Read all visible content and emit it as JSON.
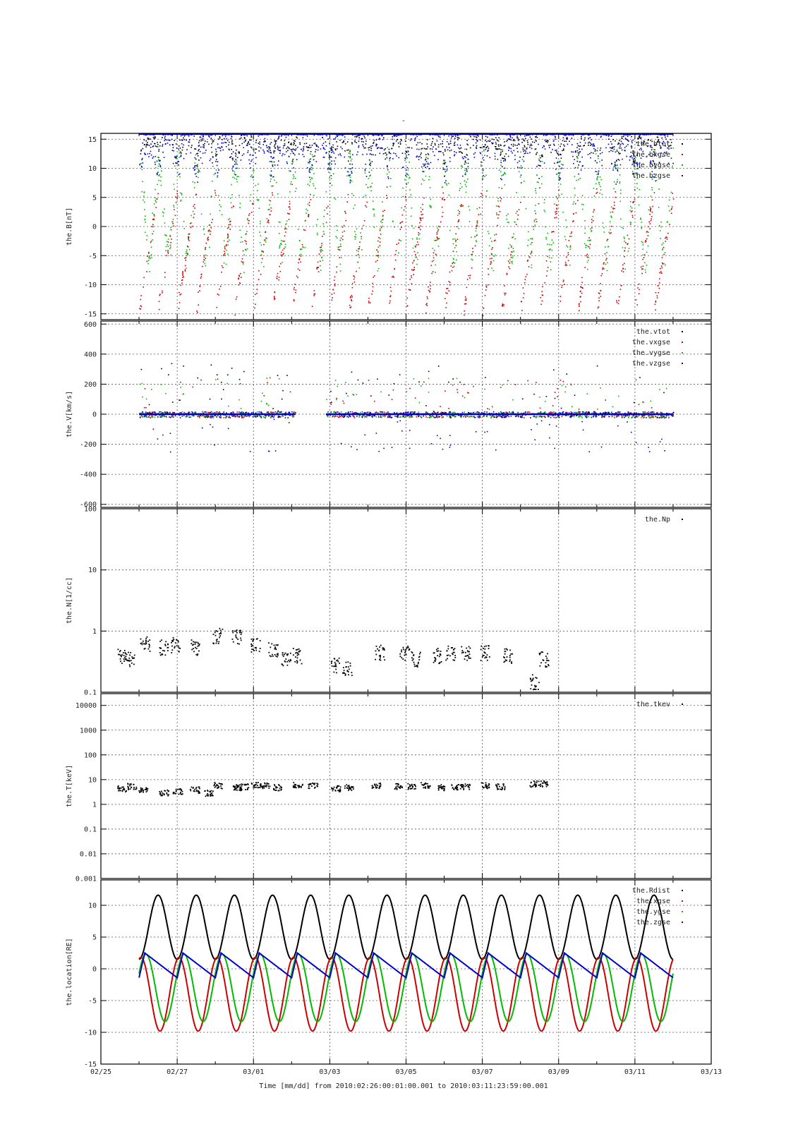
{
  "figure": {
    "top_mark": "-",
    "x_title": "Time [mm/dd]  from 2010:02:26:00:01:00.001  to  2010:03:11:23:59:00.001"
  },
  "chart_data": [
    {
      "type": "scatter",
      "ylabel": "the.B[nT]",
      "xlim_days": [
        0,
        16
      ],
      "x_ticks": [
        "02/25",
        "02/27",
        "03/01",
        "03/03",
        "03/05",
        "03/07",
        "03/09",
        "03/11",
        "03/13"
      ],
      "ylim": [
        -16,
        16
      ],
      "y_ticks": [
        -15,
        -10,
        -5,
        0,
        5,
        10,
        15
      ],
      "grid": true,
      "legend": "top-right",
      "series": [
        {
          "name": "the.btot",
          "color": "#000000"
        },
        {
          "name": "the.bxgse",
          "color": "#cc0000"
        },
        {
          "name": "the.bygse",
          "color": "#00bb00"
        },
        {
          "name": "the.bzgse",
          "color": "#0000cc"
        }
      ]
    },
    {
      "type": "scatter",
      "ylabel": "the.V[km/s]",
      "ylim": [
        -620,
        620
      ],
      "y_ticks": [
        -600,
        -400,
        -200,
        0,
        200,
        400,
        600
      ],
      "grid": true,
      "legend": "top-right",
      "series": [
        {
          "name": "the.vtot",
          "color": "#000000"
        },
        {
          "name": "the.vxgse",
          "color": "#cc0000"
        },
        {
          "name": "the.vygse",
          "color": "#00bb00"
        },
        {
          "name": "the.vzgse",
          "color": "#0000cc"
        }
      ]
    },
    {
      "type": "scatter",
      "ylabel": "the.N[1/cc]",
      "yscale": "log",
      "ylim": [
        0.1,
        100
      ],
      "y_ticks": [
        "0.1",
        "1",
        "10",
        "100"
      ],
      "grid": true,
      "legend": "top-right",
      "series": [
        {
          "name": "the.Np",
          "color": "#000000",
          "clusters": [
            [
              0.55,
              0.4
            ],
            [
              0.75,
              0.35
            ],
            [
              1.15,
              0.62
            ],
            [
              1.65,
              0.55
            ],
            [
              1.95,
              0.6
            ],
            [
              2.45,
              0.55
            ],
            [
              3.05,
              0.85
            ],
            [
              3.55,
              0.8
            ],
            [
              4.05,
              0.6
            ],
            [
              4.5,
              0.5
            ],
            [
              4.85,
              0.35
            ],
            [
              5.15,
              0.4
            ],
            [
              6.15,
              0.28
            ],
            [
              6.45,
              0.25
            ],
            [
              7.3,
              0.45
            ],
            [
              7.95,
              0.45
            ],
            [
              8.25,
              0.35
            ],
            [
              8.8,
              0.4
            ],
            [
              9.15,
              0.45
            ],
            [
              9.55,
              0.45
            ],
            [
              10.05,
              0.45
            ],
            [
              10.65,
              0.4
            ],
            [
              11.35,
              0.15
            ],
            [
              11.6,
              0.35
            ]
          ]
        }
      ]
    },
    {
      "type": "scatter",
      "ylabel": "the.T[keV]",
      "yscale": "log",
      "ylim": [
        0.001,
        30000
      ],
      "y_ticks": [
        "0.001",
        "0.01",
        "0.1",
        "1",
        "10",
        "100",
        "1000",
        "10000"
      ],
      "grid": true,
      "legend": "top-right",
      "series": [
        {
          "name": "the.tkev",
          "color": "#000000",
          "clusters": [
            [
              0.55,
              4.5
            ],
            [
              0.8,
              5.5
            ],
            [
              1.1,
              4
            ],
            [
              1.65,
              3
            ],
            [
              2.0,
              3.5
            ],
            [
              2.45,
              4
            ],
            [
              2.8,
              3
            ],
            [
              3.05,
              6
            ],
            [
              3.55,
              5
            ],
            [
              3.75,
              5.5
            ],
            [
              4.05,
              6.5
            ],
            [
              4.3,
              6
            ],
            [
              4.6,
              5
            ],
            [
              5.15,
              6.5
            ],
            [
              5.55,
              6
            ],
            [
              6.15,
              4.5
            ],
            [
              6.5,
              5
            ],
            [
              7.2,
              6
            ],
            [
              7.8,
              5.5
            ],
            [
              8.15,
              5.5
            ],
            [
              8.5,
              6
            ],
            [
              8.95,
              5
            ],
            [
              9.3,
              5
            ],
            [
              9.55,
              5.5
            ],
            [
              10.05,
              6
            ],
            [
              10.45,
              5.5
            ],
            [
              11.35,
              7
            ],
            [
              11.6,
              7
            ]
          ]
        }
      ]
    },
    {
      "type": "line",
      "ylabel": "the.location[RE]",
      "ylim": [
        -15,
        14
      ],
      "y_ticks": [
        -15,
        -10,
        -5,
        0,
        5,
        10
      ],
      "grid": true,
      "legend": "top-right",
      "series": [
        {
          "name": "the.Rdist",
          "color": "#000000"
        },
        {
          "name": "the.xgse",
          "color": "#cc0000"
        },
        {
          "name": "the.ygse",
          "color": "#00bb00"
        },
        {
          "name": "the.zgse",
          "color": "#0000cc"
        }
      ],
      "orbit": {
        "x_start": 1.0,
        "x_end": 15.0,
        "period_days": 1.0,
        "rdist_range": [
          1.5,
          11.6
        ],
        "xgse_range": [
          -9.8,
          1.8
        ],
        "ygse_range": [
          -8.3,
          2.3
        ],
        "zgse_range": [
          -1.4,
          2.5
        ]
      }
    }
  ]
}
